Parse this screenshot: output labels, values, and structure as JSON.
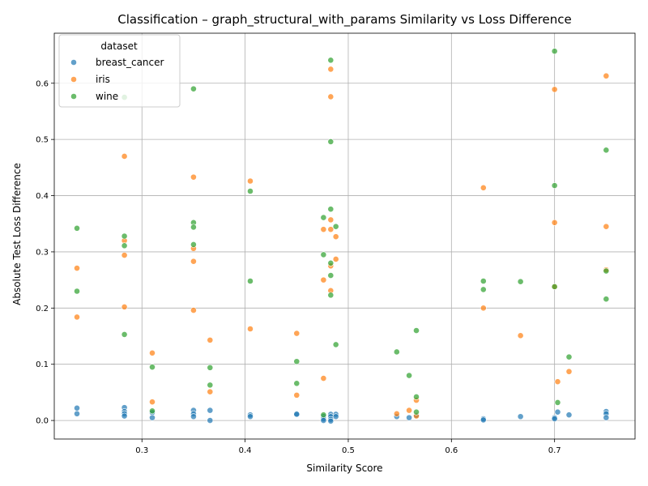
{
  "chart_data": {
    "type": "scatter",
    "title": "Classification – graph_structural_with_params Similarity vs Loss Difference",
    "xlabel": "Similarity Score",
    "ylabel": "Absolute Test Loss Difference",
    "xlim": [
      0.215,
      0.778
    ],
    "ylim": [
      -0.033,
      0.689
    ],
    "xticks": [
      0.3,
      0.4,
      0.5,
      0.6,
      0.7
    ],
    "xtick_labels": [
      "0.3",
      "0.4",
      "0.5",
      "0.6",
      "0.7"
    ],
    "yticks": [
      0.0,
      0.1,
      0.2,
      0.3,
      0.4,
      0.5,
      0.6
    ],
    "ytick_labels": [
      "0.0",
      "0.1",
      "0.2",
      "0.3",
      "0.4",
      "0.5",
      "0.6"
    ],
    "grid": true,
    "legend": {
      "title": "dataset",
      "position": "top-left"
    },
    "series": [
      {
        "name": "breast_cancer",
        "color": "#1f77b4",
        "points": [
          [
            0.237,
            0.022
          ],
          [
            0.237,
            0.012
          ],
          [
            0.283,
            0.023
          ],
          [
            0.283,
            0.016
          ],
          [
            0.283,
            0.012
          ],
          [
            0.283,
            0.008
          ],
          [
            0.31,
            0.014
          ],
          [
            0.31,
            0.005
          ],
          [
            0.35,
            0.018
          ],
          [
            0.35,
            0.012
          ],
          [
            0.35,
            0.007
          ],
          [
            0.366,
            0.018
          ],
          [
            0.366,
            0.0
          ],
          [
            0.405,
            0.01
          ],
          [
            0.405,
            0.007
          ],
          [
            0.45,
            0.012
          ],
          [
            0.45,
            0.011
          ],
          [
            0.476,
            0.007
          ],
          [
            0.476,
            0.003
          ],
          [
            0.476,
            0.0
          ],
          [
            0.483,
            0.011
          ],
          [
            0.483,
            0.007
          ],
          [
            0.483,
            0.002
          ],
          [
            0.483,
            -0.001
          ],
          [
            0.488,
            0.011
          ],
          [
            0.488,
            0.007
          ],
          [
            0.547,
            0.007
          ],
          [
            0.559,
            0.005
          ],
          [
            0.566,
            0.009
          ],
          [
            0.631,
            0.003
          ],
          [
            0.631,
            0.001
          ],
          [
            0.667,
            0.007
          ],
          [
            0.7,
            0.005
          ],
          [
            0.7,
            0.003
          ],
          [
            0.703,
            0.015
          ],
          [
            0.714,
            0.01
          ],
          [
            0.75,
            0.016
          ],
          [
            0.75,
            0.012
          ],
          [
            0.75,
            0.005
          ]
        ]
      },
      {
        "name": "iris",
        "color": "#ff7f0e",
        "points": [
          [
            0.237,
            0.271
          ],
          [
            0.237,
            0.184
          ],
          [
            0.283,
            0.47
          ],
          [
            0.283,
            0.32
          ],
          [
            0.283,
            0.294
          ],
          [
            0.283,
            0.202
          ],
          [
            0.31,
            0.12
          ],
          [
            0.31,
            0.033
          ],
          [
            0.35,
            0.433
          ],
          [
            0.35,
            0.306
          ],
          [
            0.35,
            0.283
          ],
          [
            0.35,
            0.196
          ],
          [
            0.366,
            0.143
          ],
          [
            0.366,
            0.051
          ],
          [
            0.405,
            0.426
          ],
          [
            0.405,
            0.163
          ],
          [
            0.45,
            0.155
          ],
          [
            0.45,
            0.045
          ],
          [
            0.476,
            0.34
          ],
          [
            0.476,
            0.25
          ],
          [
            0.476,
            0.075
          ],
          [
            0.483,
            0.625
          ],
          [
            0.483,
            0.576
          ],
          [
            0.483,
            0.357
          ],
          [
            0.483,
            0.34
          ],
          [
            0.483,
            0.275
          ],
          [
            0.483,
            0.231
          ],
          [
            0.488,
            0.327
          ],
          [
            0.488,
            0.287
          ],
          [
            0.547,
            0.012
          ],
          [
            0.559,
            0.018
          ],
          [
            0.566,
            0.036
          ],
          [
            0.566,
            0.008
          ],
          [
            0.631,
            0.414
          ],
          [
            0.631,
            0.2
          ],
          [
            0.667,
            0.151
          ],
          [
            0.7,
            0.589
          ],
          [
            0.7,
            0.352
          ],
          [
            0.7,
            0.238
          ],
          [
            0.703,
            0.069
          ],
          [
            0.714,
            0.087
          ],
          [
            0.75,
            0.613
          ],
          [
            0.75,
            0.345
          ],
          [
            0.75,
            0.268
          ]
        ]
      },
      {
        "name": "wine",
        "color": "#2ca02c",
        "points": [
          [
            0.237,
            0.342
          ],
          [
            0.237,
            0.23
          ],
          [
            0.283,
            0.575
          ],
          [
            0.283,
            0.328
          ],
          [
            0.283,
            0.311
          ],
          [
            0.283,
            0.153
          ],
          [
            0.31,
            0.095
          ],
          [
            0.31,
            0.017
          ],
          [
            0.35,
            0.59
          ],
          [
            0.35,
            0.352
          ],
          [
            0.35,
            0.344
          ],
          [
            0.35,
            0.313
          ],
          [
            0.366,
            0.094
          ],
          [
            0.366,
            0.063
          ],
          [
            0.405,
            0.408
          ],
          [
            0.405,
            0.248
          ],
          [
            0.45,
            0.105
          ],
          [
            0.45,
            0.066
          ],
          [
            0.476,
            0.361
          ],
          [
            0.476,
            0.295
          ],
          [
            0.476,
            0.01
          ],
          [
            0.483,
            0.641
          ],
          [
            0.483,
            0.496
          ],
          [
            0.483,
            0.376
          ],
          [
            0.483,
            0.28
          ],
          [
            0.483,
            0.258
          ],
          [
            0.483,
            0.223
          ],
          [
            0.488,
            0.345
          ],
          [
            0.488,
            0.135
          ],
          [
            0.547,
            0.122
          ],
          [
            0.559,
            0.08
          ],
          [
            0.566,
            0.16
          ],
          [
            0.566,
            0.042
          ],
          [
            0.566,
            0.015
          ],
          [
            0.631,
            0.248
          ],
          [
            0.631,
            0.233
          ],
          [
            0.667,
            0.247
          ],
          [
            0.7,
            0.657
          ],
          [
            0.7,
            0.418
          ],
          [
            0.7,
            0.238
          ],
          [
            0.703,
            0.032
          ],
          [
            0.714,
            0.113
          ],
          [
            0.75,
            0.481
          ],
          [
            0.75,
            0.266
          ],
          [
            0.75,
            0.216
          ]
        ]
      }
    ]
  }
}
